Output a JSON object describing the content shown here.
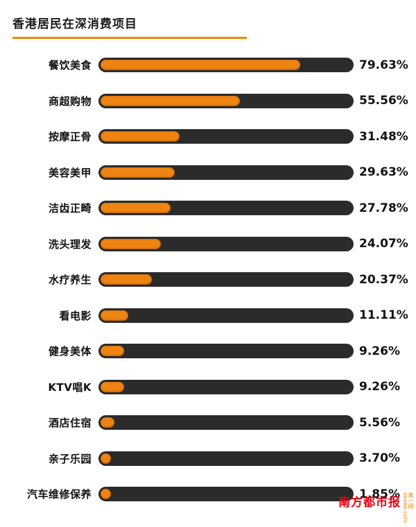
{
  "header": {
    "title": "香港居民在深消费项目"
  },
  "chart_data": {
    "type": "bar",
    "orientation": "horizontal",
    "title": "香港居民在深消费项目",
    "xlim": [
      0,
      100
    ],
    "legend": "none",
    "grid": false,
    "categories": [
      "餐饮美食",
      "商超购物",
      "按摩正骨",
      "美容美甲",
      "洁齿正畸",
      "洗头理发",
      "水疗养生",
      "看电影",
      "健身美体",
      "KTV唱K",
      "酒店住宿",
      "亲子乐园",
      "汽车维修保养"
    ],
    "values": [
      79.63,
      55.56,
      31.48,
      29.63,
      27.78,
      24.07,
      20.37,
      11.11,
      9.26,
      9.26,
      5.56,
      3.7,
      1.85
    ],
    "value_labels": [
      "79.63%",
      "55.56%",
      "31.48%",
      "29.63%",
      "27.78%",
      "24.07%",
      "20.37%",
      "11.11%",
      "9.26%",
      "9.26%",
      "5.56%",
      "3.70%",
      "1.85%"
    ],
    "colors": {
      "track": "#2b2b2b",
      "fill": "#ef8412",
      "accent": "#f08300"
    }
  },
  "footer": {
    "brand": "南方都市报",
    "site": "奥一网oeeee.com"
  }
}
